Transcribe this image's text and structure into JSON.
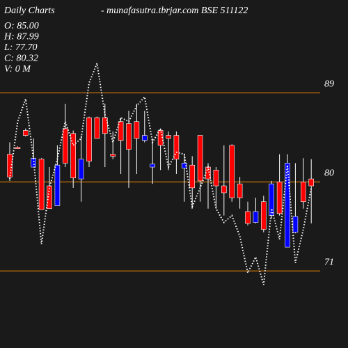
{
  "chart_data": {
    "type": "candlestick",
    "title": "Daily Charts",
    "subtitle": "-  munafasutra.tbrjar.com BSE 511122",
    "info": [
      "O: 85.00",
      "H: 87.99",
      "L: 77.70",
      "C: 80.32",
      "V: 0  M"
    ],
    "open": [
      80.5,
      83.5,
      84.7,
      82.4,
      77.2,
      77.3,
      81.7,
      81.9,
      80.4,
      82.3,
      82.1,
      84.4,
      84.9,
      82.6,
      84.2,
      83.3,
      84.4,
      84.7,
      81.8,
      83.7,
      84.4,
      82.3,
      81.9,
      79.4,
      80.1,
      80.3,
      79.6,
      78.9,
      78.4,
      78.4,
      75.8,
      77.0,
      75.2,
      79.8,
      76.8,
      81.9,
      76.5,
      78.0,
      79.6
    ],
    "high": [
      84.0,
      83.6,
      85.4,
      84.4,
      82.4,
      81.5,
      83.7,
      87.9,
      85.2,
      84.7,
      86.6,
      86.6,
      87.9,
      85.1,
      86.5,
      87.2,
      87.9,
      87.2,
      84.4,
      85.4,
      85.1,
      85.1,
      82.8,
      82.6,
      84.7,
      81.9,
      81.5,
      83.7,
      83.8,
      80.5,
      78.0,
      78.4,
      78.6,
      80.1,
      82.8,
      82.8,
      81.9,
      82.4,
      82.3
    ],
    "low": [
      80.1,
      83.4,
      84.6,
      81.5,
      77.2,
      77.3,
      77.6,
      81.5,
      79.4,
      78.0,
      81.5,
      84.4,
      81.5,
      82.3,
      80.8,
      79.4,
      80.8,
      84.0,
      79.8,
      81.2,
      81.2,
      80.8,
      78.0,
      77.3,
      78.0,
      77.3,
      77.3,
      76.6,
      78.0,
      77.3,
      75.6,
      75.8,
      74.9,
      76.3,
      76.6,
      73.4,
      74.8,
      77.3,
      75.8
    ],
    "close": [
      82.8,
      83.5,
      85.2,
      81.5,
      82.3,
      79.6,
      77.6,
      85.4,
      84.9,
      80.3,
      86.5,
      86.5,
      86.5,
      82.8,
      86.1,
      85.9,
      86.1,
      84.2,
      81.5,
      85.2,
      84.7,
      84.7,
      81.4,
      81.7,
      84.7,
      81.5,
      81.2,
      79.6,
      83.7,
      79.8,
      77.0,
      75.9,
      78.0,
      76.6,
      80.0,
      73.4,
      74.9,
      80.0,
      80.3
    ],
    "line": {
      "color": "#ffffff",
      "values": [
        80.3,
        86.1,
        88.4,
        82.3,
        73.7,
        79.4,
        82.3,
        86.1,
        83.7,
        84.4,
        90.0,
        92.0,
        86.8,
        84.0,
        86.5,
        86.1,
        87.7,
        88.6,
        84.0,
        85.4,
        81.5,
        83.0,
        82.8,
        77.5,
        79.4,
        81.5,
        77.3,
        75.9,
        76.6,
        74.5,
        70.8,
        72.4,
        69.6,
        77.3,
        74.2,
        81.7,
        71.8,
        75.2,
        79.4
      ]
    },
    "up_color": "#ff0000",
    "down_color": "#0000ff",
    "grid_color": "#ff8c00",
    "ylim": [
      63.2,
      98.4
    ],
    "yticks": [
      71,
      80,
      89
    ],
    "grid": true
  }
}
